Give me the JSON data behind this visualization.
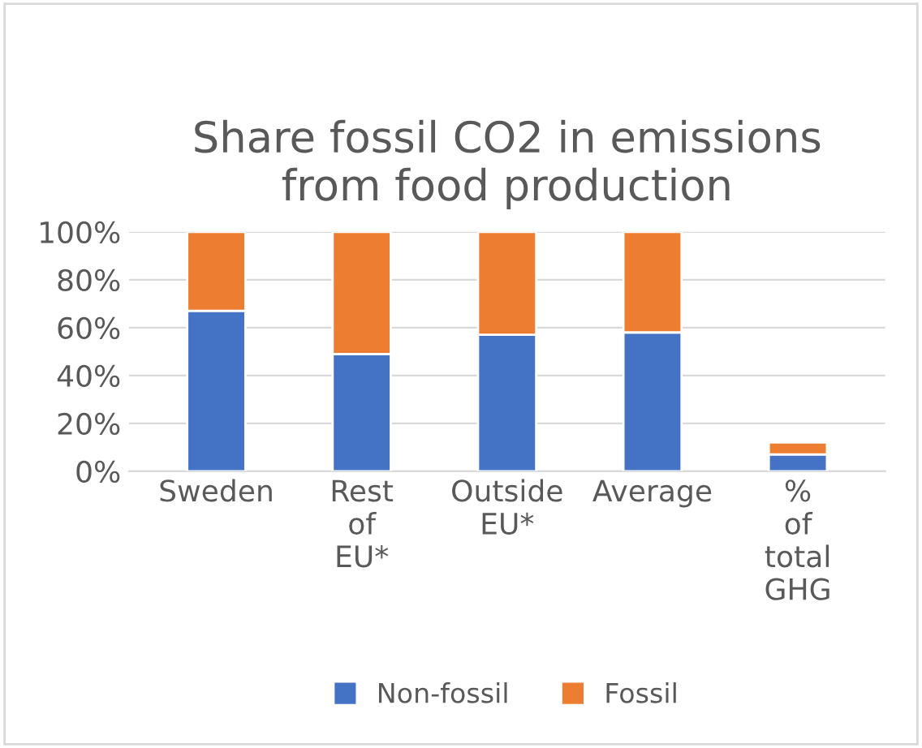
{
  "chart_data": {
    "type": "bar",
    "title": "Share fossil CO2 in emissions\nfrom food production",
    "categories": [
      "Sweden",
      "Rest of EU*",
      "Outside EU*",
      "Average",
      "% of total GHG"
    ],
    "stacked": true,
    "series": [
      {
        "name": "Non-fossil",
        "color": "#4472c4",
        "values": [
          67,
          49,
          57,
          58,
          7
        ]
      },
      {
        "name": "Fossil",
        "color": "#ed7d31",
        "values": [
          33,
          51,
          43,
          42,
          5
        ]
      }
    ],
    "ylim": [
      0,
      100
    ],
    "yticks": [
      {
        "value": 0,
        "label": "0%"
      },
      {
        "value": 20,
        "label": "20%"
      },
      {
        "value": 40,
        "label": "40%"
      },
      {
        "value": 60,
        "label": "60%"
      },
      {
        "value": 80,
        "label": "80%"
      },
      {
        "value": 100,
        "label": "100%"
      }
    ],
    "grid": "y",
    "legend": "bottom"
  }
}
